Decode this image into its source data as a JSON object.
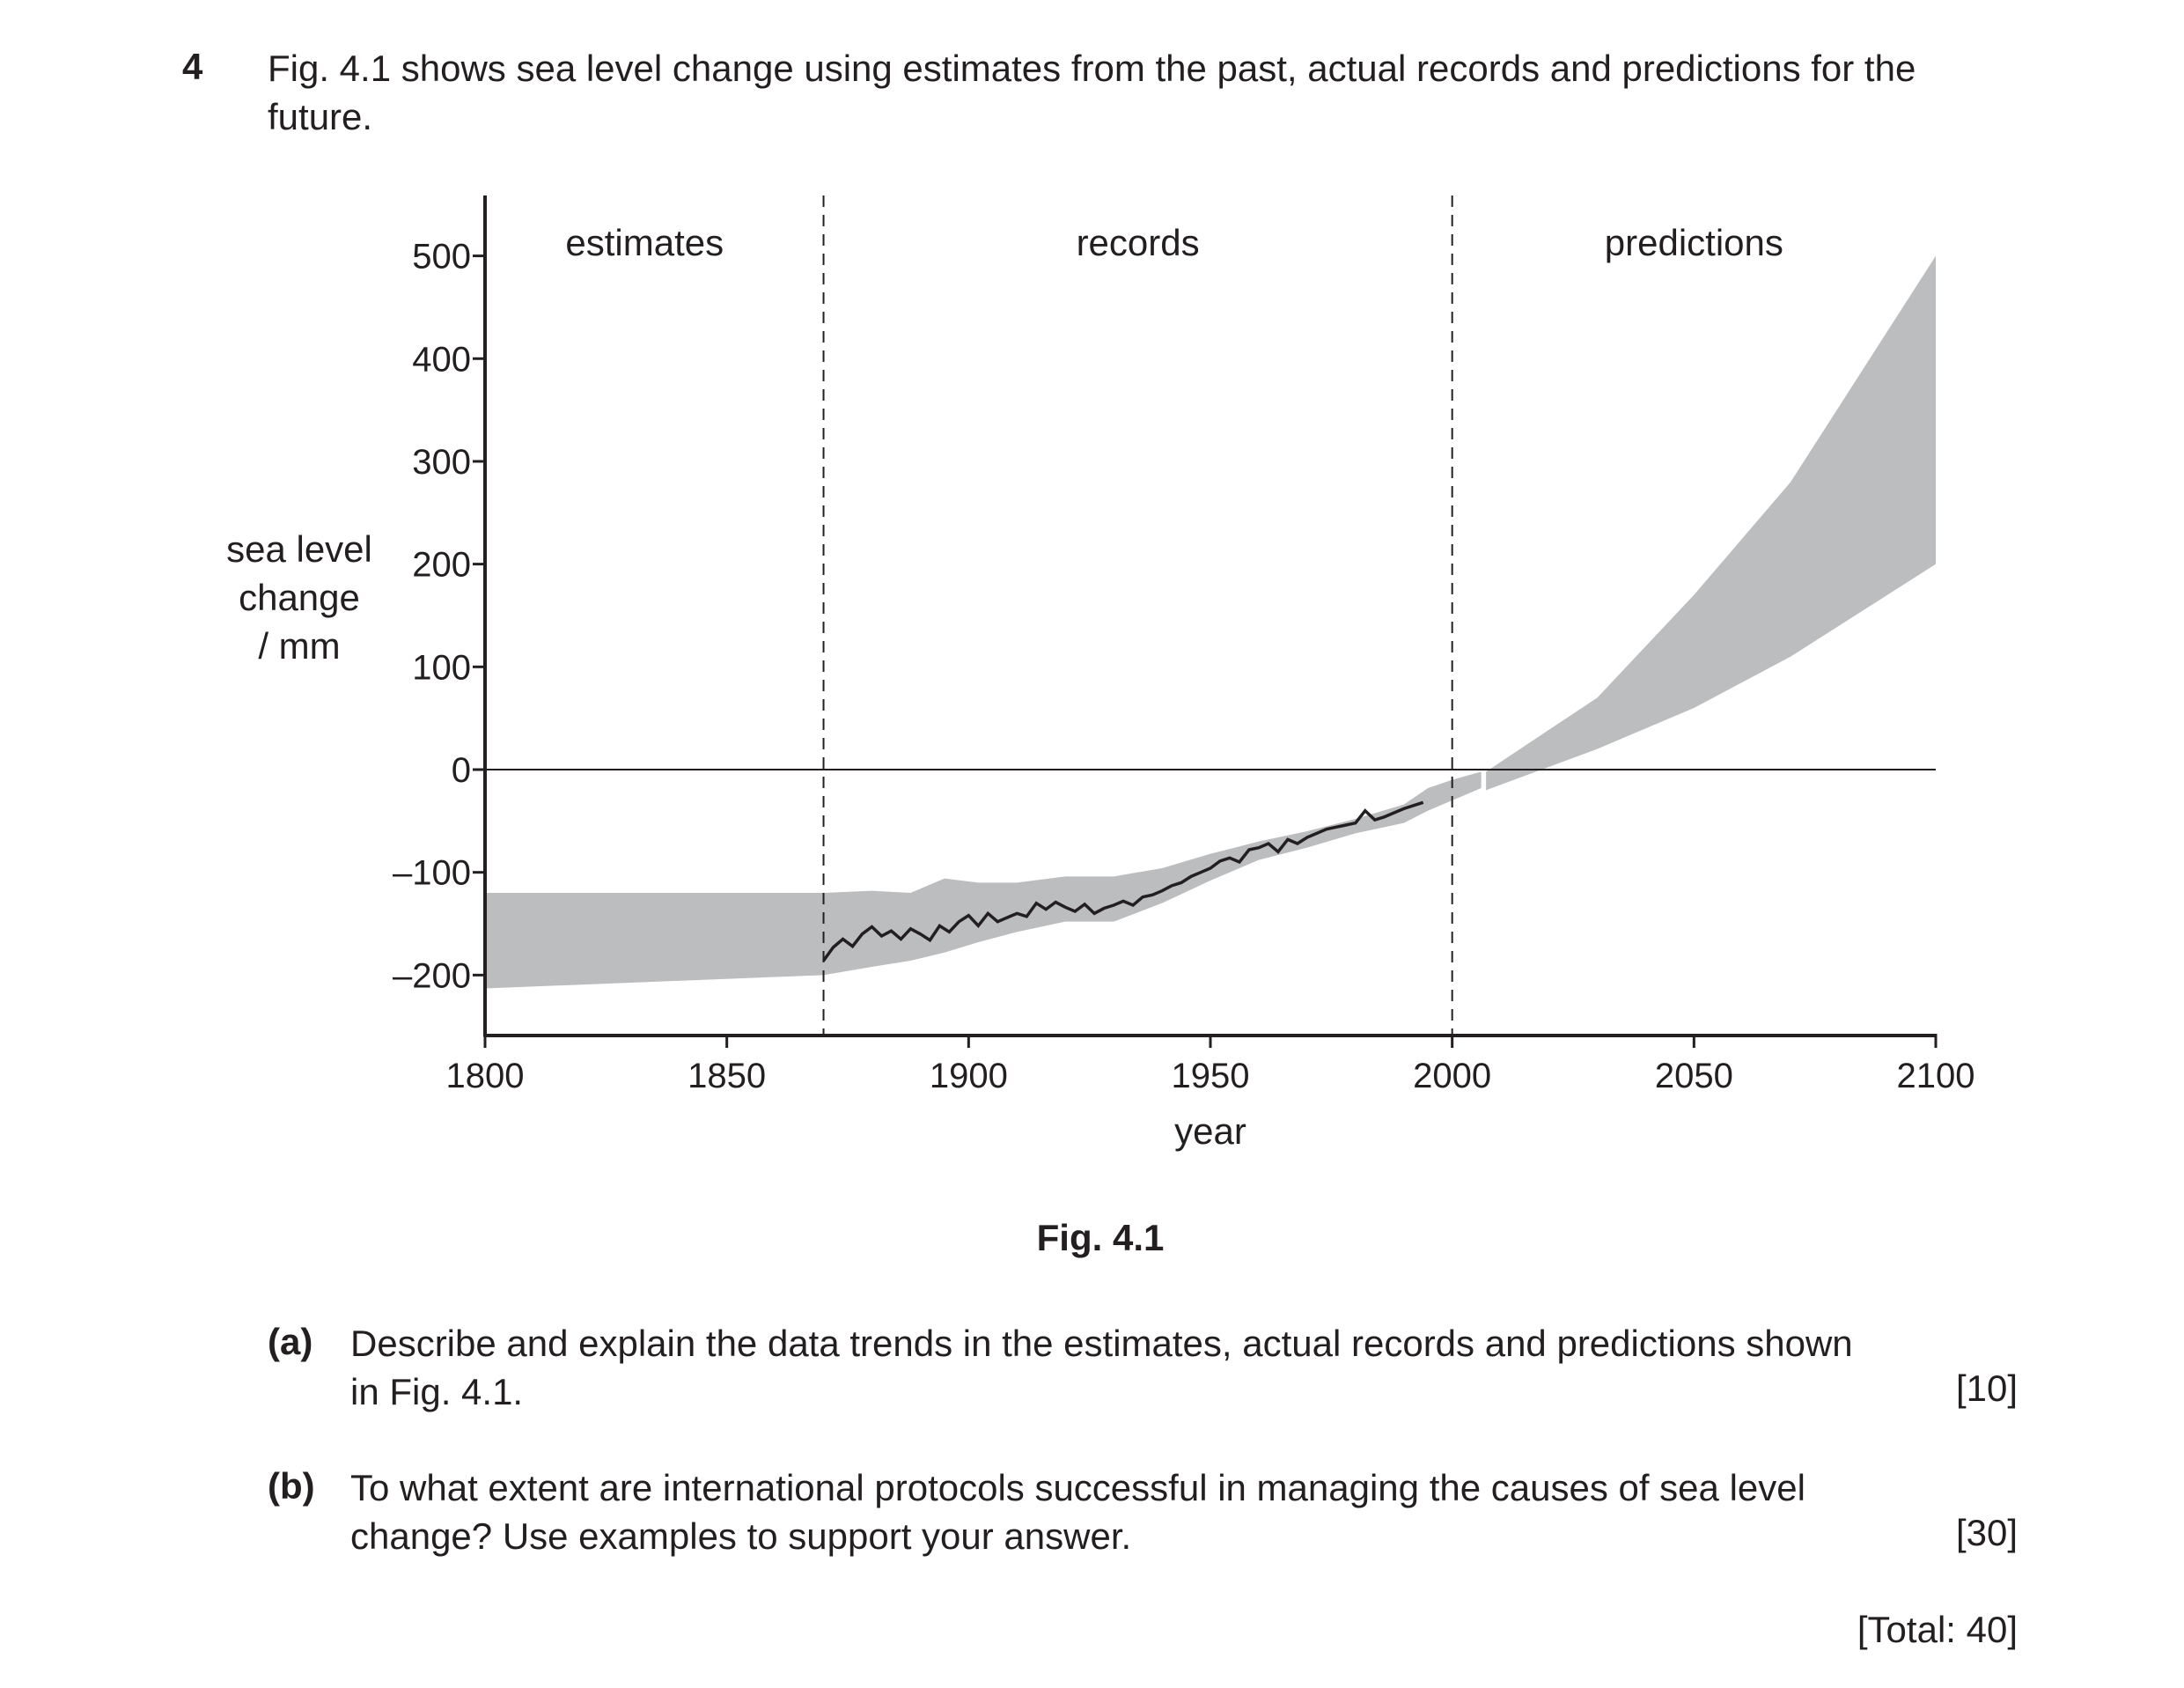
{
  "question": {
    "number": "4",
    "intro": "Fig. 4.1 shows sea level change using estimates from the past, actual records and predictions for the future.",
    "figure_caption": "Fig. 4.1",
    "parts": [
      {
        "label": "(a)",
        "text_line1": "Describe and explain the data trends in the estimates, actual records and predictions shown",
        "text_line2": "in Fig. 4.1.",
        "marks": "[10]"
      },
      {
        "label": "(b)",
        "text_line1": "To what extent are international protocols successful in managing the causes of sea level",
        "text_line2": "change? Use examples to support your answer.",
        "marks": "[30]"
      }
    ],
    "total": "[Total: 40]"
  },
  "chart_data": {
    "type": "area",
    "xlabel": "year",
    "ylabel_lines": [
      "sea level",
      "change",
      "/ mm"
    ],
    "xlim": [
      1800,
      2100
    ],
    "ylim": [
      -260,
      560
    ],
    "x_ticks": [
      1800,
      1850,
      1900,
      1950,
      2000,
      2050,
      2100
    ],
    "x_tick_labels": [
      "1800",
      "1850",
      "1900",
      "1950",
      "2000",
      "2050",
      "2100"
    ],
    "y_ticks": [
      500,
      400,
      300,
      200,
      100,
      0,
      -100,
      -200
    ],
    "y_tick_labels": [
      "500",
      "400",
      "300",
      "200",
      "100",
      "0",
      "–100",
      "–200"
    ],
    "zero_line": true,
    "region_dividers": [
      1870,
      2000
    ],
    "region_labels": [
      {
        "text": "estimates",
        "x": 1833
      },
      {
        "text": "records",
        "x": 1935
      },
      {
        "text": "predictions",
        "x": 2050
      }
    ],
    "band_color": "#bcbdbf",
    "line_color": "#231f20",
    "estimates_band": {
      "x": [
        1800,
        1870
      ],
      "upper": [
        -120,
        -120
      ],
      "lower": [
        -213,
        -200
      ]
    },
    "records_band": {
      "x": [
        1870,
        1880,
        1888,
        1895,
        1902,
        1910,
        1920,
        1930,
        1940,
        1950,
        1960,
        1970,
        1980,
        1990,
        1995,
        2000,
        2006
      ],
      "upper": [
        -120,
        -118,
        -120,
        -106,
        -110,
        -110,
        -104,
        -104,
        -96,
        -82,
        -70,
        -60,
        -48,
        -34,
        -18,
        -10,
        -2
      ],
      "lower": [
        -200,
        -192,
        -186,
        -178,
        -168,
        -158,
        -148,
        -148,
        -130,
        -108,
        -88,
        -76,
        -62,
        -52,
        -40,
        -30,
        -18
      ]
    },
    "predictions_band": {
      "x": [
        2007,
        2030,
        2050,
        2070,
        2100
      ],
      "upper": [
        -2,
        70,
        170,
        280,
        500
      ],
      "lower": [
        -20,
        20,
        60,
        110,
        200
      ]
    },
    "records_line": {
      "x": [
        1870,
        1872,
        1874,
        1876,
        1878,
        1880,
        1882,
        1884,
        1886,
        1888,
        1890,
        1892,
        1894,
        1896,
        1898,
        1900,
        1902,
        1904,
        1906,
        1908,
        1910,
        1912,
        1914,
        1916,
        1918,
        1920,
        1922,
        1924,
        1926,
        1928,
        1930,
        1932,
        1934,
        1936,
        1938,
        1940,
        1942,
        1944,
        1946,
        1948,
        1950,
        1952,
        1954,
        1956,
        1958,
        1960,
        1962,
        1964,
        1966,
        1968,
        1970,
        1972,
        1974,
        1976,
        1978,
        1980,
        1982,
        1984,
        1986,
        1988,
        1990,
        1992,
        1994
      ],
      "y": [
        -186,
        -173,
        -165,
        -172,
        -160,
        -153,
        -162,
        -157,
        -165,
        -155,
        -160,
        -166,
        -152,
        -158,
        -148,
        -142,
        -152,
        -140,
        -148,
        -144,
        -140,
        -143,
        -130,
        -136,
        -129,
        -134,
        -138,
        -131,
        -140,
        -135,
        -132,
        -128,
        -132,
        -124,
        -122,
        -118,
        -113,
        -110,
        -104,
        -100,
        -96,
        -89,
        -86,
        -90,
        -78,
        -76,
        -72,
        -80,
        -68,
        -72,
        -66,
        -62,
        -58,
        -56,
        -54,
        -52,
        -40,
        -49,
        -46,
        -42,
        -38,
        -35,
        -32
      ]
    }
  }
}
